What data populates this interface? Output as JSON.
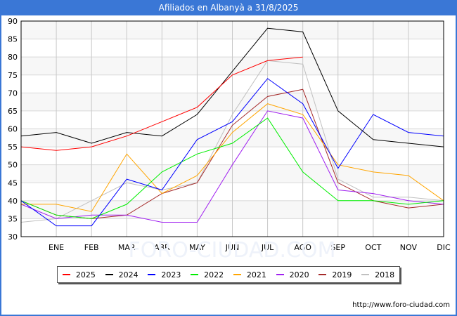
{
  "header": {
    "title": "Afiliados en Albanyà a 31/8/2025"
  },
  "footer": {
    "url": "http://www.foro-ciudad.com"
  },
  "watermark": "FORO-CIUDAD.COM",
  "chart_data": {
    "type": "line",
    "title": "Afiliados en Albanyà a 31/8/2025",
    "xlabel": "",
    "ylabel": "",
    "ylim": [
      30,
      90
    ],
    "yticks": [
      30,
      35,
      40,
      45,
      50,
      55,
      60,
      65,
      70,
      75,
      80,
      85,
      90
    ],
    "categories": [
      "",
      "ENE",
      "FEB",
      "MAR",
      "ABR",
      "MAY",
      "JUN",
      "JUL",
      "AGO",
      "SEP",
      "OCT",
      "NOV",
      "DIC"
    ],
    "grid": true,
    "legend_position": "bottom",
    "series": [
      {
        "name": "2025",
        "color": "#ff0000",
        "values": [
          55,
          54,
          55,
          58,
          62,
          66,
          75,
          79,
          80,
          null,
          null,
          null,
          null
        ]
      },
      {
        "name": "2024",
        "color": "#000000",
        "values": [
          58,
          59,
          56,
          59,
          58,
          64,
          76,
          88,
          87,
          65,
          57,
          56,
          55
        ]
      },
      {
        "name": "2023",
        "color": "#0000ff",
        "values": [
          40,
          33,
          33,
          46,
          43,
          57,
          62,
          74,
          67,
          49,
          64,
          59,
          58
        ]
      },
      {
        "name": "2022",
        "color": "#00ee00",
        "values": [
          40,
          36,
          35,
          39,
          48,
          53,
          56,
          63,
          48,
          40,
          40,
          39,
          40
        ]
      },
      {
        "name": "2021",
        "color": "#ffa500",
        "values": [
          39,
          39,
          37,
          53,
          42,
          47,
          59,
          67,
          64,
          50,
          48,
          47,
          40
        ]
      },
      {
        "name": "2020",
        "color": "#a020f0",
        "values": [
          39,
          35,
          36,
          36,
          34,
          34,
          50,
          65,
          63,
          43,
          42,
          40,
          39
        ]
      },
      {
        "name": "2019",
        "color": "#a52a2a",
        "values": [
          40,
          36,
          35,
          36,
          42,
          45,
          61,
          69,
          71,
          45,
          40,
          38,
          39
        ]
      },
      {
        "name": "2018",
        "color": "#c0c0c0",
        "values": [
          34,
          35,
          40,
          45,
          43,
          45,
          64,
          79,
          78,
          46,
          41,
          41,
          40
        ]
      }
    ]
  }
}
